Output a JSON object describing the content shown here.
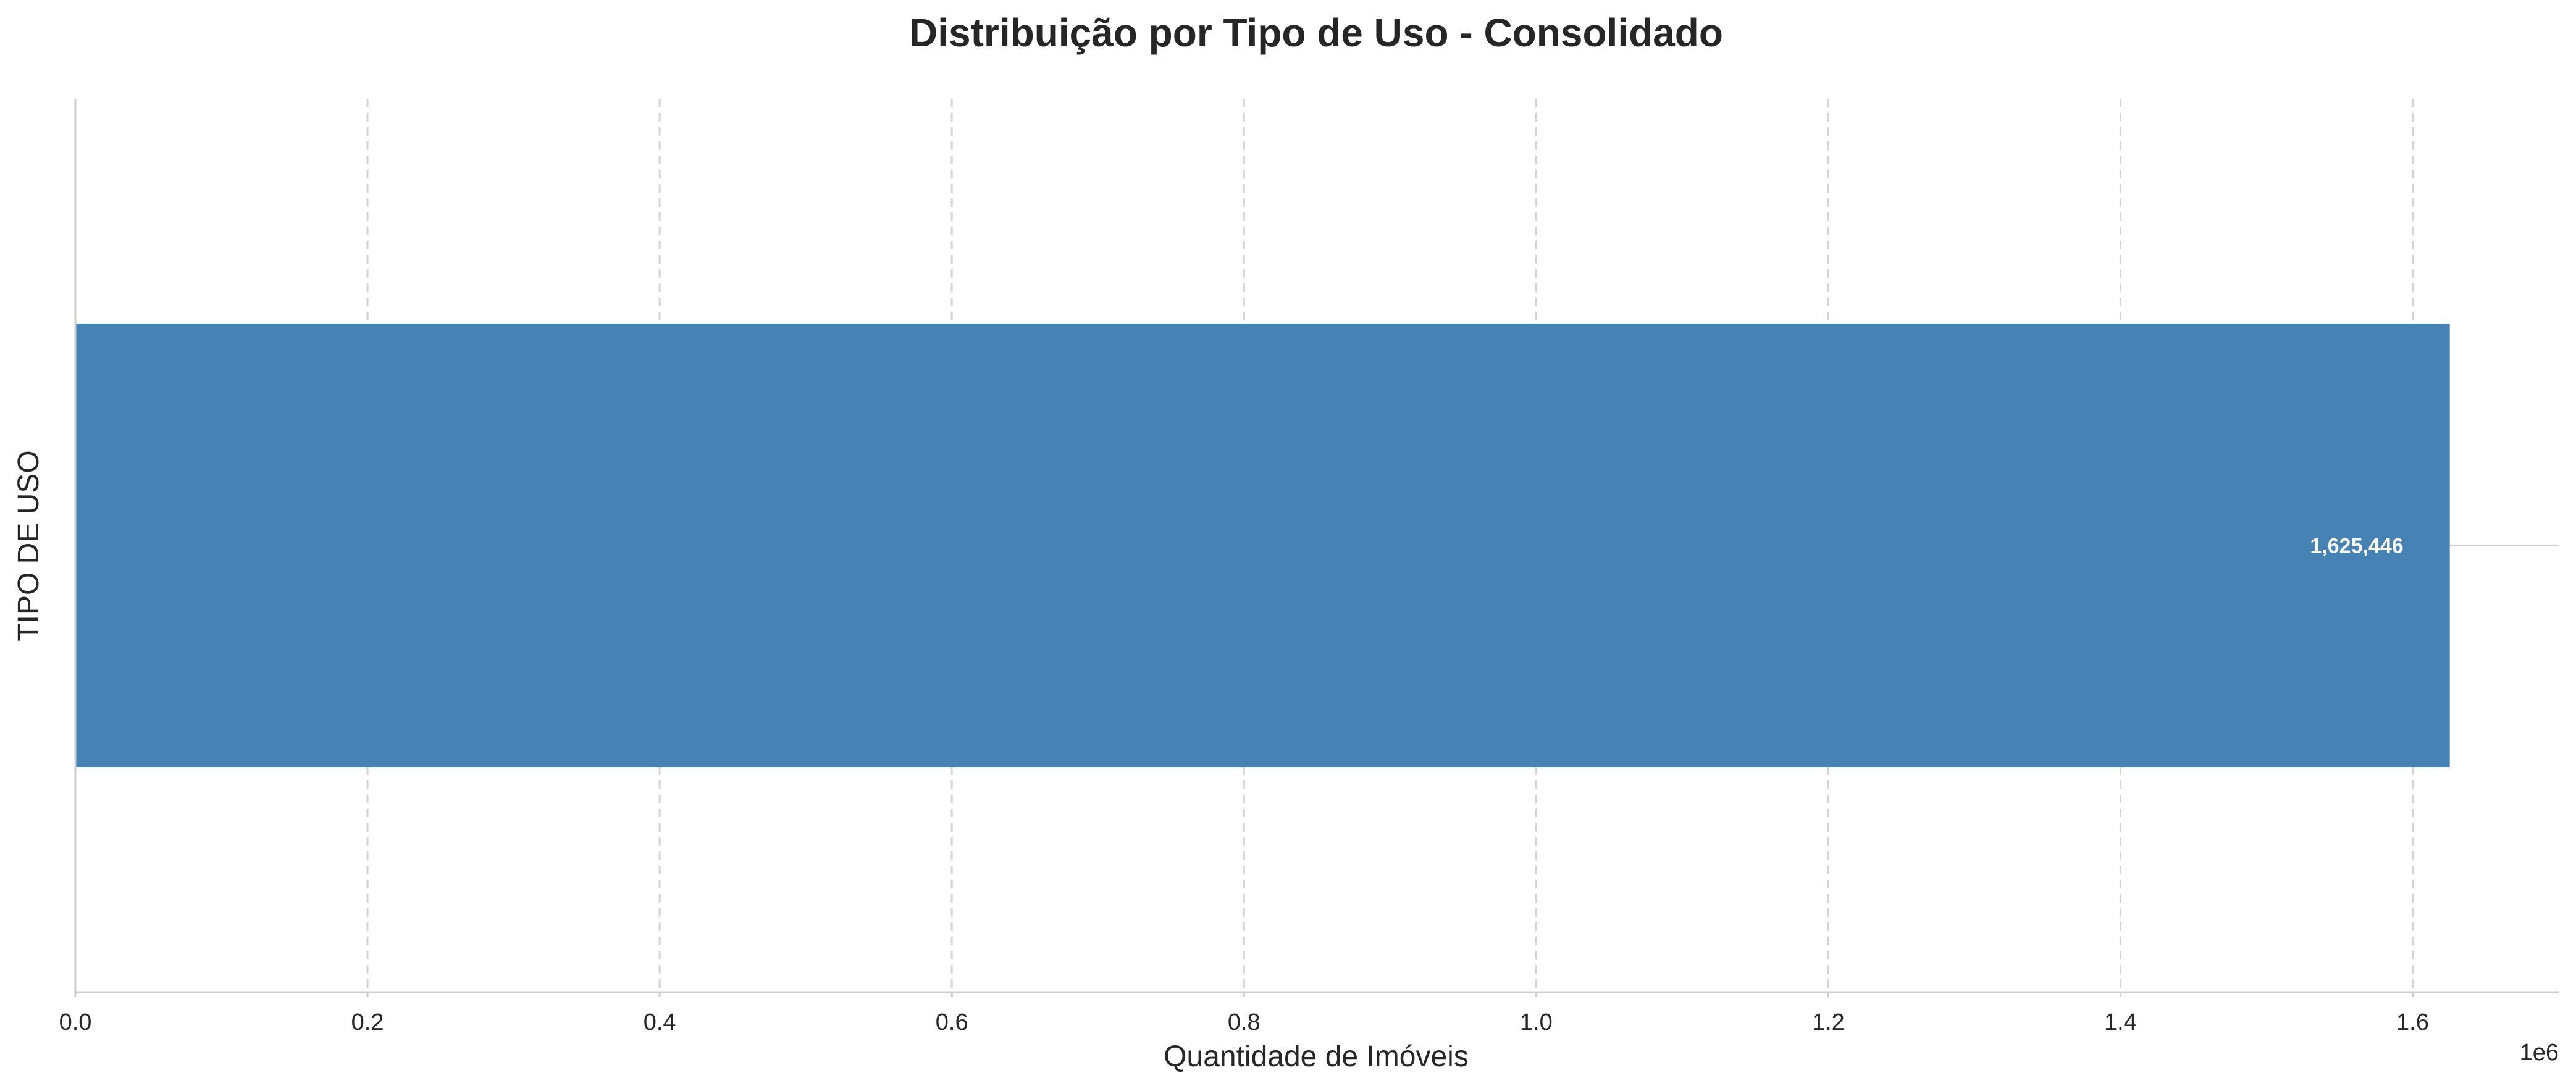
{
  "chart_data": {
    "type": "bar",
    "orientation": "horizontal",
    "title": "Distribuição por Tipo de Uso - Consolidado",
    "xlabel": "Quantidade de Imóveis",
    "ylabel": "TIPO DE USO",
    "x_offset_label": "1e6",
    "xlim": [
      0,
      1700000
    ],
    "x_ticks": [
      0,
      200000,
      400000,
      600000,
      800000,
      1000000,
      1200000,
      1400000,
      1600000
    ],
    "x_tick_labels": [
      "0.0",
      "0.2",
      "0.4",
      "0.6",
      "0.8",
      "1.0",
      "1.2",
      "1.4",
      "1.6"
    ],
    "categories": [
      ""
    ],
    "values": [
      1625446
    ],
    "value_labels": [
      "1,625,446"
    ],
    "bar_color": "#4682b4",
    "grid": "vertical dashed",
    "legend": "none"
  }
}
